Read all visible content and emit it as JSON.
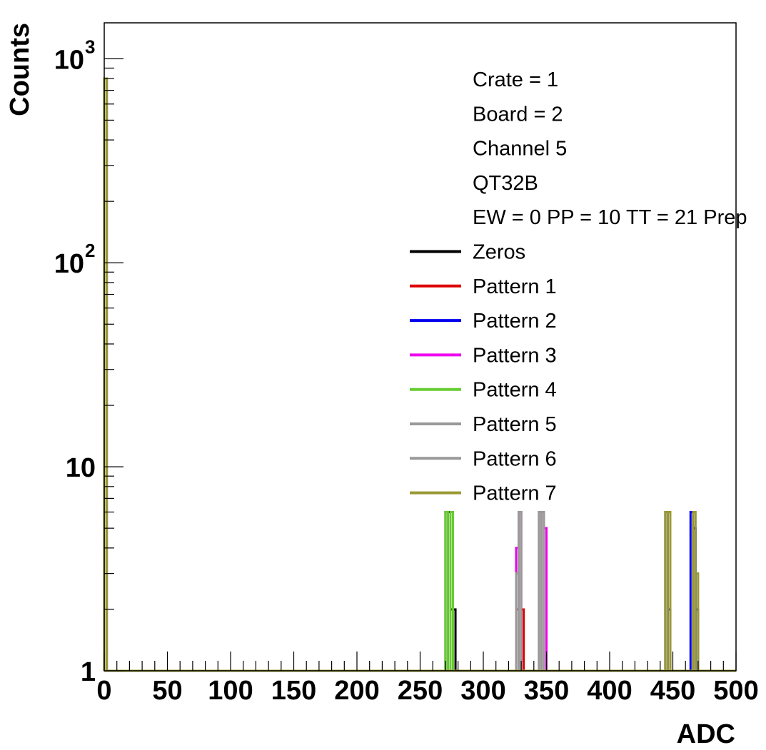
{
  "chart_data": {
    "type": "line",
    "xlabel": "ADC",
    "ylabel": "Counts",
    "xlim": [
      0,
      500
    ],
    "ylim": [
      1,
      1500
    ],
    "log_y": true,
    "grid": false,
    "x_ticks": [
      "0",
      "50",
      "100",
      "150",
      "200",
      "250",
      "300",
      "350",
      "400",
      "450",
      "500"
    ],
    "y_ticks": [
      {
        "value": 1,
        "base": "1",
        "exp": ""
      },
      {
        "value": 10,
        "base": "10",
        "exp": ""
      },
      {
        "value": 100,
        "base": "10",
        "exp": "2"
      },
      {
        "value": 1000,
        "base": "10",
        "exp": "3"
      }
    ],
    "info_lines": [
      "Crate = 1",
      "Board = 2",
      "Channel 5",
      "QT32B",
      "EW = 0 PP = 10 TT = 21 Prep"
    ],
    "legend_position": "top-right",
    "series": [
      {
        "name": "Zeros",
        "color": "#000000",
        "points": [
          [
            0,
            800
          ],
          [
            270,
            6
          ],
          [
            272,
            6
          ],
          [
            274,
            2
          ],
          [
            276,
            2
          ]
        ]
      },
      {
        "name": "Pattern 1",
        "color": "#dd0000",
        "points": [
          [
            0,
            800
          ],
          [
            326,
            2
          ],
          [
            328,
            6
          ],
          [
            330,
            2
          ],
          [
            346,
            6
          ],
          [
            348,
            5
          ]
        ]
      },
      {
        "name": "Pattern 2",
        "color": "#0000ee",
        "points": [
          [
            0,
            800
          ],
          [
            444,
            6
          ],
          [
            446,
            2
          ],
          [
            464,
            6
          ],
          [
            466,
            5
          ],
          [
            468,
            2
          ]
        ]
      },
      {
        "name": "Pattern 3",
        "color": "#ee00ee",
        "points": [
          [
            0,
            800
          ],
          [
            326,
            4
          ],
          [
            328,
            6
          ],
          [
            346,
            6
          ],
          [
            348,
            5
          ]
        ]
      },
      {
        "name": "Pattern 4",
        "color": "#66cc33",
        "points": [
          [
            0,
            800
          ],
          [
            270,
            6
          ],
          [
            274,
            6
          ]
        ]
      },
      {
        "name": "Pattern 5",
        "color": "#999999",
        "points": [
          [
            0,
            800
          ],
          [
            326,
            3
          ],
          [
            328,
            6
          ],
          [
            344,
            6
          ],
          [
            346,
            6
          ]
        ]
      },
      {
        "name": "Pattern 6",
        "color": "#999999",
        "points": [
          [
            0,
            800
          ],
          [
            326,
            3
          ],
          [
            328,
            6
          ],
          [
            344,
            6
          ],
          [
            346,
            6
          ]
        ]
      },
      {
        "name": "Pattern 7",
        "color": "#999933",
        "points": [
          [
            0,
            800
          ],
          [
            444,
            6
          ],
          [
            446,
            6
          ],
          [
            466,
            6
          ],
          [
            468,
            3
          ]
        ]
      }
    ]
  }
}
